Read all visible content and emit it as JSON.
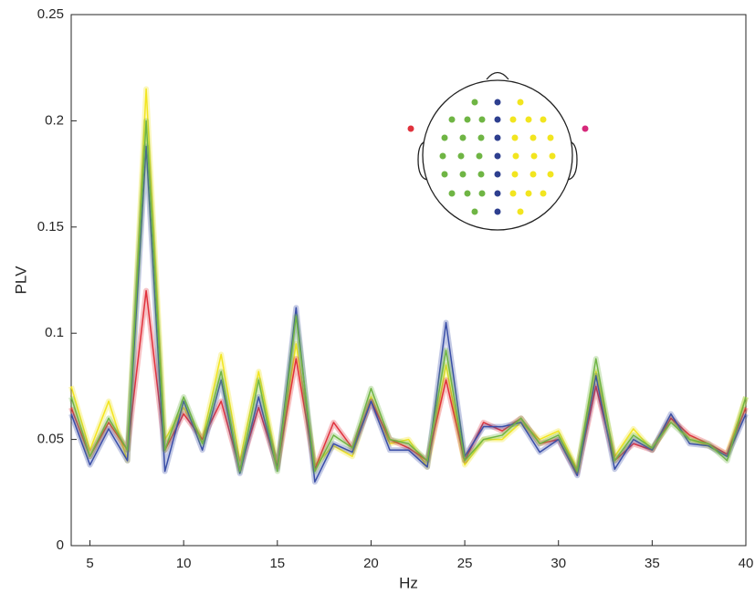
{
  "chart_data": {
    "type": "line",
    "xlabel": "Hz",
    "ylabel": "PLV",
    "x": [
      4,
      5,
      6,
      7,
      8,
      9,
      10,
      11,
      12,
      13,
      14,
      15,
      16,
      17,
      18,
      19,
      20,
      21,
      22,
      23,
      24,
      25,
      26,
      27,
      28,
      29,
      30,
      31,
      32,
      33,
      34,
      35,
      36,
      37,
      38,
      39,
      40
    ],
    "series": [
      {
        "color": "#f2e51f",
        "values": [
          0.075,
          0.045,
          0.068,
          0.04,
          0.215,
          0.05,
          0.065,
          0.05,
          0.09,
          0.04,
          0.082,
          0.038,
          0.095,
          0.038,
          0.047,
          0.042,
          0.07,
          0.048,
          0.05,
          0.037,
          0.085,
          0.038,
          0.05,
          0.05,
          0.058,
          0.05,
          0.054,
          0.036,
          0.082,
          0.042,
          0.055,
          0.045,
          0.06,
          0.05,
          0.047,
          0.043,
          0.07
        ]
      },
      {
        "color": "#e0323c",
        "values": [
          0.065,
          0.042,
          0.058,
          0.045,
          0.12,
          0.045,
          0.062,
          0.05,
          0.068,
          0.036,
          0.065,
          0.037,
          0.088,
          0.036,
          0.058,
          0.046,
          0.068,
          0.05,
          0.046,
          0.04,
          0.078,
          0.04,
          0.058,
          0.054,
          0.06,
          0.048,
          0.05,
          0.034,
          0.075,
          0.04,
          0.048,
          0.045,
          0.06,
          0.052,
          0.048,
          0.043,
          0.065
        ]
      },
      {
        "color": "#3a4fa8",
        "values": [
          0.062,
          0.038,
          0.055,
          0.04,
          0.188,
          0.035,
          0.068,
          0.045,
          0.078,
          0.034,
          0.07,
          0.036,
          0.112,
          0.03,
          0.048,
          0.044,
          0.068,
          0.045,
          0.045,
          0.037,
          0.105,
          0.042,
          0.056,
          0.056,
          0.058,
          0.044,
          0.05,
          0.033,
          0.08,
          0.036,
          0.05,
          0.045,
          0.062,
          0.048,
          0.047,
          0.042,
          0.062
        ]
      },
      {
        "color": "#6fb544",
        "values": [
          0.07,
          0.042,
          0.06,
          0.045,
          0.2,
          0.045,
          0.07,
          0.048,
          0.082,
          0.035,
          0.078,
          0.035,
          0.108,
          0.035,
          0.052,
          0.046,
          0.074,
          0.05,
          0.048,
          0.04,
          0.092,
          0.04,
          0.05,
          0.052,
          0.06,
          0.048,
          0.052,
          0.035,
          0.088,
          0.04,
          0.052,
          0.046,
          0.058,
          0.05,
          0.048,
          0.04,
          0.07
        ]
      }
    ],
    "xlim": [
      4,
      40
    ],
    "xticks": [
      5,
      10,
      15,
      20,
      25,
      30,
      35,
      40
    ],
    "ylim": [
      0,
      0.25
    ],
    "yticks": [
      0,
      0.05,
      0.1,
      0.15,
      0.2,
      0.25
    ]
  }
}
